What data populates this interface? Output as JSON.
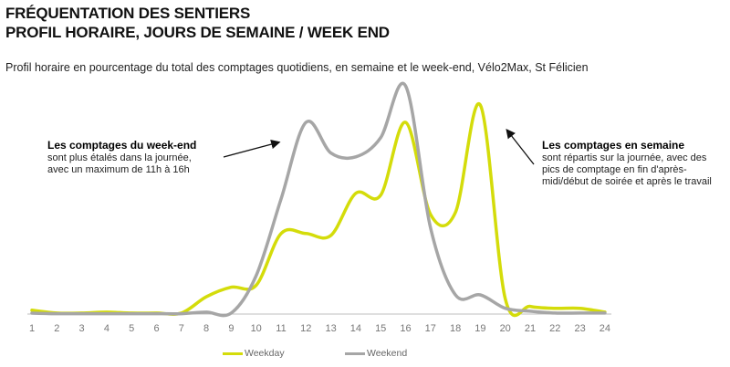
{
  "header": {
    "title_line1": "FRÉQUENTATION DES SENTIERS",
    "title_line2": "PROFIL HORAIRE, JOURS DE SEMAINE / WEEK END",
    "subtitle": "Profil horaire en pourcentage du total des comptages quotidiens, en semaine et le week-end, Vélo2Max, St Félicien"
  },
  "annotations": {
    "weekend_title": "Les comptages du week-end",
    "weekend_line1": "sont plus étalés dans la journée,",
    "weekend_line2": "avec un maximum de 11h à 16h",
    "weekday_title": "Les comptages en semaine",
    "weekday_line1": "sont répartis sur la journée, avec des",
    "weekday_line2": "pics de comptage en fin d'après-",
    "weekday_line3": "midi/début de soirée et après le travail"
  },
  "colors": {
    "weekday": "#d4dc0a",
    "weekend": "#a6a6a6",
    "axis": "#bfbfbf",
    "arrow": "#111111"
  },
  "chart_data": {
    "type": "line",
    "x": [
      1,
      2,
      3,
      4,
      5,
      6,
      7,
      8,
      9,
      10,
      11,
      12,
      13,
      14,
      15,
      16,
      17,
      18,
      19,
      20,
      21,
      22,
      23,
      24
    ],
    "ylim": [
      0,
      11
    ],
    "grid": false,
    "legend_position": "bottom",
    "series": [
      {
        "name": "Weekday",
        "color": "#d4dc0a",
        "values": [
          0.2,
          0.05,
          0.05,
          0.1,
          0.05,
          0.05,
          0.05,
          0.9,
          1.4,
          1.5,
          4.2,
          4.2,
          4.1,
          6.3,
          6.2,
          10.0,
          5.2,
          5.3,
          10.9,
          0.8,
          0.4,
          0.3,
          0.3,
          0.1
        ]
      },
      {
        "name": "Weekend",
        "color": "#a6a6a6",
        "values": [
          0.05,
          0.02,
          0.02,
          0.02,
          0.02,
          0.02,
          0.02,
          0.1,
          0.05,
          2.0,
          6.0,
          10.0,
          8.4,
          8.2,
          9.2,
          11.9,
          4.5,
          1.0,
          1.0,
          0.3,
          0.15,
          0.05,
          0.05,
          0.05
        ]
      }
    ]
  }
}
